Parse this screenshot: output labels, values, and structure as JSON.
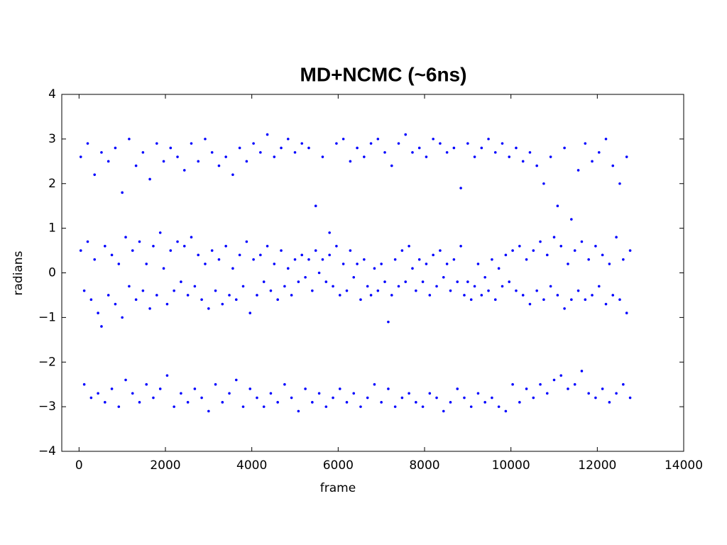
{
  "chart_data": {
    "type": "scatter",
    "title": "MD+NCMC (~6ns)",
    "x_label": "frame",
    "y_label": "radians",
    "color": "#0000ff",
    "xlim": [
      -400,
      14000
    ],
    "ylim": [
      -4,
      4
    ],
    "xticks": [
      0,
      2000,
      4000,
      6000,
      8000,
      10000,
      12000,
      14000
    ],
    "yticks": [
      {
        "value": -4,
        "label": "−4"
      },
      {
        "value": -3,
        "label": "−3"
      },
      {
        "value": -2,
        "label": "−2"
      },
      {
        "value": -1,
        "label": "−1"
      },
      0,
      1,
      2,
      3,
      4
    ],
    "x": [
      40,
      40,
      120,
      120,
      200,
      200,
      280,
      280,
      360,
      360,
      440,
      440,
      520,
      520,
      600,
      600,
      680,
      680,
      760,
      760,
      840,
      840,
      920,
      920,
      1000,
      1000,
      1080,
      1080,
      1160,
      1160,
      1240,
      1240,
      1320,
      1320,
      1400,
      1400,
      1480,
      1480,
      1560,
      1560,
      1640,
      1640,
      1720,
      1720,
      1800,
      1800,
      1880,
      1880,
      1960,
      1960,
      2040,
      2040,
      2120,
      2120,
      2200,
      2200,
      2280,
      2280,
      2360,
      2360,
      2440,
      2440,
      2520,
      2520,
      2600,
      2600,
      2680,
      2680,
      2760,
      2760,
      2840,
      2840,
      2920,
      2920,
      3000,
      3000,
      3080,
      3080,
      3160,
      3160,
      3240,
      3240,
      3320,
      3320,
      3400,
      3400,
      3480,
      3480,
      3560,
      3560,
      3640,
      3640,
      3720,
      3720,
      3800,
      3800,
      3880,
      3880,
      3960,
      3960,
      4040,
      4040,
      4120,
      4120,
      4200,
      4200,
      4280,
      4280,
      4360,
      4360,
      4440,
      4440,
      4520,
      4520,
      4600,
      4600,
      4680,
      4680,
      4760,
      4760,
      4840,
      4840,
      4920,
      4920,
      5000,
      5000,
      5080,
      5080,
      5160,
      5160,
      5240,
      5240,
      5320,
      5320,
      5400,
      5400,
      5480,
      5480,
      5560,
      5560,
      5640,
      5640,
      5720,
      5720,
      5800,
      5800,
      5880,
      5880,
      5960,
      5960,
      6040,
      6040,
      6120,
      6120,
      6200,
      6200,
      6280,
      6280,
      6360,
      6360,
      6440,
      6440,
      6520,
      6520,
      6600,
      6600,
      6680,
      6680,
      6760,
      6760,
      6840,
      6840,
      6920,
      6920,
      7000,
      7000,
      7080,
      7080,
      7160,
      7160,
      7240,
      7240,
      7320,
      7320,
      7400,
      7400,
      7480,
      7480,
      7560,
      7560,
      7640,
      7640,
      7720,
      7720,
      7800,
      7800,
      7880,
      7880,
      7960,
      7960,
      8040,
      8040,
      8120,
      8120,
      8200,
      8200,
      8280,
      8280,
      8360,
      8360,
      8440,
      8440,
      8520,
      8520,
      8600,
      8600,
      8680,
      8680,
      8760,
      8760,
      8840,
      8840,
      8920,
      8920,
      9000,
      9000,
      9080,
      9080,
      9160,
      9160,
      9240,
      9240,
      9320,
      9320,
      9400,
      9400,
      9480,
      9480,
      9560,
      9560,
      9640,
      9640,
      9720,
      9720,
      9800,
      9800,
      9880,
      9880,
      9960,
      9960,
      10040,
      10040,
      10120,
      10120,
      10200,
      10200,
      10280,
      10280,
      10360,
      10360,
      10440,
      10440,
      10520,
      10520,
      10600,
      10600,
      10680,
      10680,
      10760,
      10760,
      10840,
      10840,
      10920,
      10920,
      11000,
      11000,
      11080,
      11080,
      11160,
      11160,
      11240,
      11240,
      11320,
      11320,
      11400,
      11400,
      11480,
      11480,
      11560,
      11560,
      11640,
      11640,
      11720,
      11720,
      11800,
      11800,
      11880,
      11880,
      11960,
      11960,
      12040,
      12040,
      12120,
      12120,
      12200,
      12200,
      12280,
      12280,
      12360,
      12360,
      12440,
      12440,
      12520,
      12520,
      12600,
      12600,
      12680,
      12680,
      12760,
      12760
    ],
    "values": [
      2.6,
      0.5,
      -2.5,
      -0.4,
      2.9,
      0.7,
      -2.8,
      -0.6,
      2.2,
      0.3,
      -2.7,
      -0.9,
      2.7,
      -1.2,
      -2.9,
      0.6,
      2.5,
      -0.5,
      -2.6,
      0.4,
      2.8,
      -0.7,
      -3.0,
      0.2,
      1.8,
      -1.0,
      -2.4,
      0.8,
      3.0,
      -0.3,
      -2.7,
      0.5,
      2.4,
      -0.6,
      -2.9,
      0.7,
      2.7,
      -0.4,
      -2.5,
      0.2,
      2.1,
      -0.8,
      -2.8,
      0.6,
      2.9,
      -0.5,
      -2.6,
      0.9,
      2.5,
      0.1,
      -2.3,
      -0.7,
      2.8,
      0.5,
      -3.0,
      -0.4,
      2.6,
      0.7,
      -2.7,
      -0.2,
      2.3,
      0.6,
      -2.9,
      -0.5,
      2.9,
      0.8,
      -2.6,
      -0.3,
      2.5,
      0.4,
      -2.8,
      -0.6,
      3.0,
      0.2,
      -3.1,
      -0.8,
      2.7,
      0.5,
      -2.5,
      -0.4,
      2.4,
      0.3,
      -2.9,
      -0.7,
      2.6,
      0.6,
      -2.7,
      -0.5,
      2.2,
      0.1,
      -2.4,
      -0.6,
      2.8,
      0.4,
      -3.0,
      -0.3,
      2.5,
      0.7,
      -2.6,
      -0.9,
      2.9,
      0.3,
      -2.8,
      -0.5,
      2.7,
      0.4,
      -3.0,
      -0.2,
      3.1,
      0.6,
      -2.7,
      -0.4,
      2.6,
      0.2,
      -2.9,
      -0.6,
      2.8,
      0.5,
      -2.5,
      -0.3,
      3.0,
      0.1,
      -2.8,
      -0.5,
      2.7,
      0.3,
      -3.1,
      -0.2,
      2.9,
      0.4,
      -2.6,
      -0.1,
      2.8,
      0.3,
      -2.9,
      -0.4,
      1.5,
      0.5,
      -2.7,
      0.0,
      2.6,
      0.3,
      -3.0,
      -0.2,
      0.9,
      0.4,
      -2.8,
      -0.3,
      2.9,
      0.6,
      -2.6,
      -0.5,
      3.0,
      0.2,
      -2.9,
      -0.4,
      2.5,
      0.5,
      -2.7,
      -0.1,
      2.8,
      0.2,
      -3.0,
      -0.6,
      2.6,
      0.3,
      -2.8,
      -0.3,
      2.9,
      -0.5,
      -2.5,
      0.1,
      3.0,
      -0.4,
      -2.9,
      0.2,
      2.7,
      -0.2,
      -2.6,
      -1.1,
      2.4,
      -0.5,
      -3.0,
      0.3,
      2.9,
      -0.3,
      -2.8,
      0.5,
      3.1,
      -0.2,
      -2.7,
      0.6,
      2.7,
      0.1,
      -2.9,
      -0.4,
      2.8,
      0.3,
      -3.0,
      -0.2,
      2.6,
      0.2,
      -2.7,
      -0.5,
      3.0,
      0.4,
      -2.8,
      -0.3,
      2.9,
      0.5,
      -3.1,
      -0.1,
      2.7,
      0.2,
      -2.9,
      -0.4,
      2.8,
      0.3,
      -2.6,
      -0.2,
      1.9,
      0.6,
      -2.8,
      -0.5,
      2.9,
      -0.2,
      -3.0,
      -0.6,
      2.6,
      -0.3,
      -2.7,
      0.2,
      2.8,
      -0.5,
      -2.9,
      -0.1,
      3.0,
      -0.4,
      -2.8,
      0.3,
      2.7,
      -0.6,
      -3.0,
      0.1,
      2.9,
      -0.3,
      -3.1,
      0.4,
      2.6,
      -0.2,
      -2.5,
      0.5,
      2.8,
      -0.4,
      -2.9,
      0.6,
      2.5,
      -0.5,
      -2.6,
      0.3,
      2.7,
      -0.7,
      -2.8,
      0.5,
      2.4,
      -0.4,
      -2.5,
      0.7,
      2.0,
      -0.6,
      -2.7,
      0.4,
      2.6,
      -0.3,
      -2.4,
      0.8,
      1.5,
      -0.5,
      -2.3,
      0.6,
      2.8,
      -0.8,
      -2.6,
      0.2,
      1.2,
      -0.6,
      -2.5,
      0.5,
      2.3,
      -0.4,
      -2.2,
      0.7,
      2.9,
      -0.6,
      -2.7,
      0.3,
      2.5,
      -0.5,
      -2.8,
      0.6,
      2.7,
      -0.3,
      -2.6,
      0.4,
      3.0,
      -0.7,
      -2.9,
      0.2,
      2.4,
      -0.5,
      -2.7,
      0.8,
      2.0,
      -0.6,
      -2.5,
      0.3,
      2.6,
      -0.9,
      -2.8,
      0.5
    ]
  }
}
